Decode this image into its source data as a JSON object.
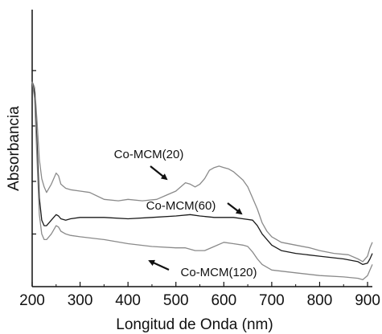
{
  "chart_data": {
    "type": "line",
    "title": "",
    "xlabel": "Longitud de Onda (nm)",
    "ylabel": "Absorbancia",
    "xlim": [
      200,
      910
    ],
    "ylim": [
      0,
      1
    ],
    "x_ticks": [
      200,
      300,
      400,
      500,
      600,
      700,
      800,
      900
    ],
    "x_tick_labels": [
      "200",
      "300",
      "400",
      "500",
      "600",
      "700",
      "800",
      "900"
    ],
    "y_ticks": [
      0.19,
      0.38,
      0.58,
      0.78
    ],
    "y_tick_labels": true,
    "grid": false,
    "series": [
      {
        "name": "Co-MCM(20)",
        "color": "#8a8a8a",
        "x": [
          200,
          205,
          210,
          215,
          220,
          225,
          230,
          240,
          250,
          255,
          260,
          270,
          280,
          300,
          320,
          350,
          380,
          400,
          430,
          460,
          480,
          500,
          510,
          520,
          530,
          540,
          550,
          560,
          570,
          580,
          590,
          600,
          610,
          620,
          630,
          640,
          650,
          660,
          670,
          680,
          690,
          700,
          720,
          750,
          780,
          800,
          830,
          860,
          880,
          890,
          900,
          905,
          910
        ],
        "y": [
          0.74,
          0.72,
          0.6,
          0.46,
          0.39,
          0.36,
          0.34,
          0.37,
          0.41,
          0.4,
          0.37,
          0.355,
          0.35,
          0.345,
          0.34,
          0.315,
          0.31,
          0.315,
          0.31,
          0.315,
          0.33,
          0.345,
          0.36,
          0.375,
          0.37,
          0.36,
          0.37,
          0.39,
          0.42,
          0.43,
          0.435,
          0.43,
          0.425,
          0.415,
          0.4,
          0.385,
          0.36,
          0.32,
          0.28,
          0.23,
          0.2,
          0.18,
          0.16,
          0.15,
          0.14,
          0.13,
          0.12,
          0.115,
          0.1,
          0.09,
          0.11,
          0.14,
          0.16
        ]
      },
      {
        "name": "Co-MCM(60)",
        "color": "#1a1a1a",
        "x": [
          200,
          205,
          210,
          215,
          220,
          225,
          230,
          240,
          250,
          255,
          260,
          270,
          280,
          300,
          350,
          400,
          450,
          500,
          530,
          550,
          580,
          600,
          620,
          640,
          660,
          670,
          680,
          700,
          720,
          750,
          800,
          850,
          880,
          890,
          900,
          905,
          910
        ],
        "y": [
          0.74,
          0.7,
          0.52,
          0.32,
          0.24,
          0.22,
          0.22,
          0.24,
          0.26,
          0.255,
          0.245,
          0.24,
          0.245,
          0.25,
          0.25,
          0.245,
          0.25,
          0.255,
          0.26,
          0.255,
          0.25,
          0.25,
          0.25,
          0.245,
          0.24,
          0.22,
          0.19,
          0.15,
          0.13,
          0.12,
          0.11,
          0.1,
          0.09,
          0.08,
          0.085,
          0.1,
          0.12
        ]
      },
      {
        "name": "Co-MCM(120)",
        "color": "#8a8a8a",
        "x": [
          200,
          205,
          210,
          215,
          220,
          225,
          230,
          240,
          250,
          255,
          260,
          270,
          280,
          300,
          350,
          400,
          450,
          500,
          520,
          540,
          560,
          580,
          600,
          620,
          640,
          650,
          660,
          670,
          680,
          700,
          750,
          800,
          850,
          880,
          890,
          900,
          905,
          910
        ],
        "y": [
          0.74,
          0.68,
          0.46,
          0.26,
          0.19,
          0.17,
          0.17,
          0.19,
          0.22,
          0.215,
          0.2,
          0.19,
          0.185,
          0.18,
          0.17,
          0.155,
          0.145,
          0.14,
          0.14,
          0.13,
          0.13,
          0.145,
          0.16,
          0.155,
          0.15,
          0.145,
          0.125,
          0.1,
          0.08,
          0.06,
          0.05,
          0.04,
          0.035,
          0.03,
          0.025,
          0.04,
          0.06,
          0.08
        ]
      }
    ],
    "annotations": [
      {
        "text": "Co-MCM(20)",
        "target_series": 0,
        "target_x": 505
      },
      {
        "text": "Co-MCM(60)",
        "target_series": 1,
        "target_x": 660
      },
      {
        "text": "Co-MCM(120)",
        "target_series": 2,
        "target_x": 430
      }
    ]
  }
}
